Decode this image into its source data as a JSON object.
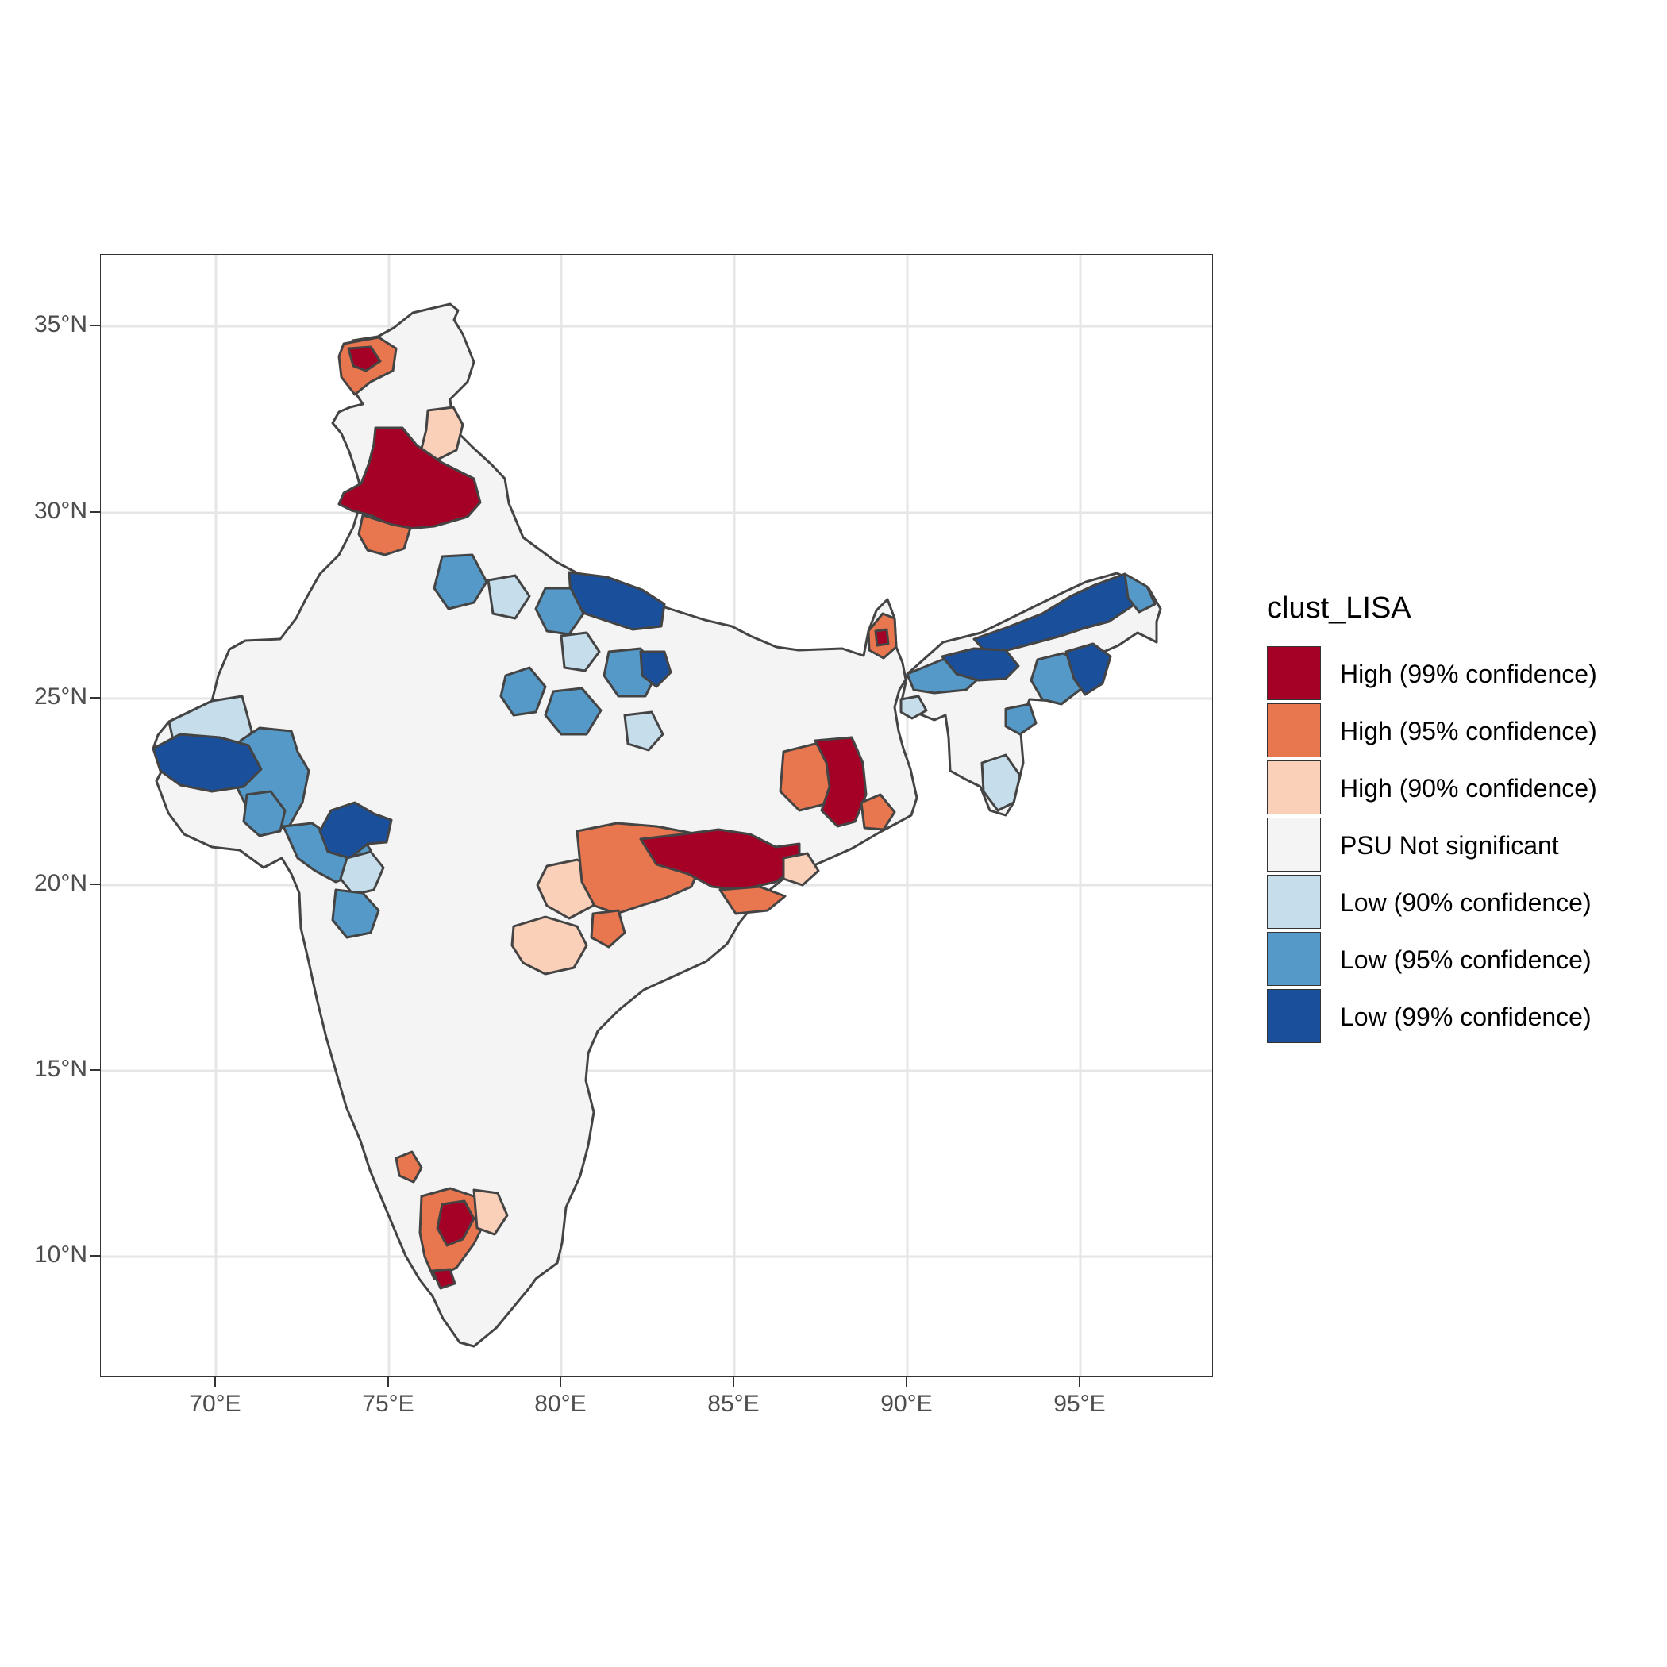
{
  "legend": {
    "title": "clust_LISA",
    "items": [
      {
        "label": "High (99% confidence)",
        "color": "#a50026"
      },
      {
        "label": "High (95% confidence)",
        "color": "#e8764f"
      },
      {
        "label": "High (90% confidence)",
        "color": "#fbd0b9"
      },
      {
        "label": "PSU Not significant",
        "color": "#f4f4f4"
      },
      {
        "label": "Low (90% confidence)",
        "color": "#c6deec"
      },
      {
        "label": "Low (95% confidence)",
        "color": "#5499c7"
      },
      {
        "label": "Low (99% confidence)",
        "color": "#1a4f9c"
      }
    ]
  },
  "axes": {
    "x_ticks": [
      "70°E",
      "75°E",
      "80°E",
      "85°E",
      "90°E",
      "95°E"
    ],
    "y_ticks": [
      "10°N",
      "15°N",
      "20°N",
      "25°N",
      "30°N",
      "35°N"
    ],
    "xlim": [
      66.7,
      98.3
    ],
    "ylim": [
      6.7,
      36.8
    ],
    "grid": true
  },
  "map": {
    "region": "India",
    "boundary_color": "#444444",
    "background_color": "#f4f4f4"
  }
}
